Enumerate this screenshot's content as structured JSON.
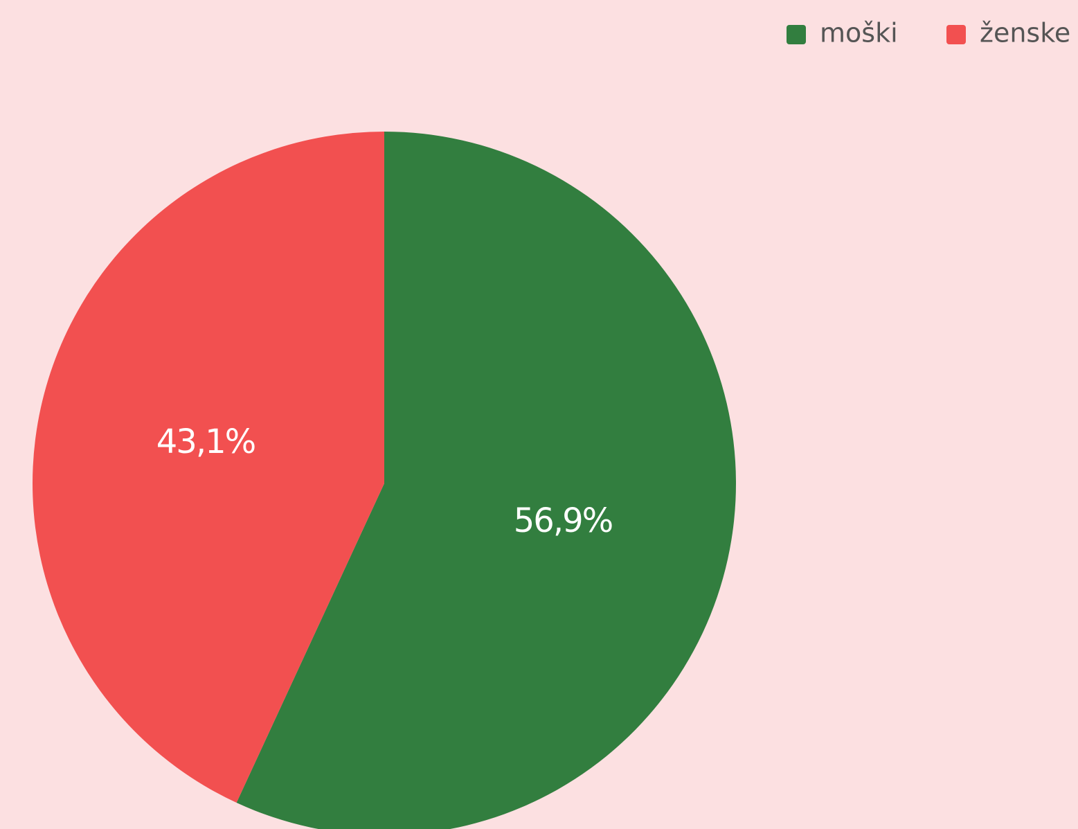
{
  "chart_data": {
    "type": "pie",
    "categories": [
      "moški",
      "ženske"
    ],
    "values": [
      56.9,
      43.1
    ],
    "value_labels": [
      "56,9%",
      "43,1%"
    ],
    "colors": [
      "#327e3f",
      "#f25050"
    ],
    "legend": "top-right"
  }
}
